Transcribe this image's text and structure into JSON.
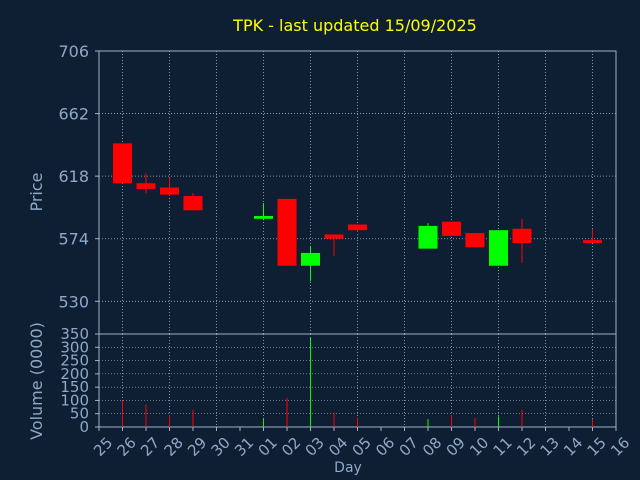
{
  "chart_data": [
    {
      "type": "candlestick",
      "title": "TPK - last updated 15/09/2025",
      "ylabel": "Price",
      "ylim": [
        507,
        706
      ],
      "yticks": [
        706,
        662,
        618,
        574,
        530
      ],
      "x_tick_labels": [
        "25",
        "26",
        "27",
        "28",
        "29",
        "30",
        "31",
        "01",
        "02",
        "03",
        "04",
        "05",
        "06",
        "07",
        "08",
        "09",
        "10",
        "11",
        "12",
        "13",
        "14",
        "15",
        "16"
      ],
      "candles": [
        {
          "day": "26",
          "open": 641,
          "high": 641,
          "low": 613,
          "close": 613
        },
        {
          "day": "27",
          "open": 613,
          "high": 620,
          "low": 606,
          "close": 609
        },
        {
          "day": "28",
          "open": 610,
          "high": 617,
          "low": 604,
          "close": 605
        },
        {
          "day": "29",
          "open": 604,
          "high": 606,
          "low": 594,
          "close": 594
        },
        {
          "day": "01",
          "open": 588,
          "high": 599,
          "low": 587,
          "close": 590
        },
        {
          "day": "02",
          "open": 602,
          "high": 602,
          "low": 555,
          "close": 555
        },
        {
          "day": "03",
          "open": 555,
          "high": 569,
          "low": 544,
          "close": 564
        },
        {
          "day": "04",
          "open": 577,
          "high": 577,
          "low": 562,
          "close": 574
        },
        {
          "day": "05",
          "open": 584,
          "high": 584,
          "low": 579,
          "close": 580
        },
        {
          "day": "08",
          "open": 567,
          "high": 585,
          "low": 567,
          "close": 583
        },
        {
          "day": "09",
          "open": 586,
          "high": 586,
          "low": 576,
          "close": 576
        },
        {
          "day": "10",
          "open": 578,
          "high": 578,
          "low": 568,
          "close": 568
        },
        {
          "day": "11",
          "open": 555,
          "high": 580,
          "low": 555,
          "close": 580
        },
        {
          "day": "12",
          "open": 581,
          "high": 588,
          "low": 557,
          "close": 571
        },
        {
          "day": "15",
          "open": 573,
          "high": 581,
          "low": 571,
          "close": 571
        }
      ],
      "colors": {
        "up": "#00ff00",
        "down": "#ff0000",
        "background": "#0f1f33",
        "axis_text": "#8fa8c8",
        "title": "#ffff00",
        "grid": "#9fb0c8"
      }
    },
    {
      "type": "bar",
      "ylabel": "Volume (0000)",
      "xlabel": "Day",
      "ylim": [
        0,
        350
      ],
      "yticks": [
        350,
        300,
        250,
        200,
        150,
        100,
        50,
        0
      ],
      "bars": [
        {
          "day": "26",
          "value": 100,
          "direction": "down"
        },
        {
          "day": "27",
          "value": 85,
          "direction": "down"
        },
        {
          "day": "28",
          "value": 45,
          "direction": "down"
        },
        {
          "day": "29",
          "value": 65,
          "direction": "down"
        },
        {
          "day": "01",
          "value": 30,
          "direction": "up"
        },
        {
          "day": "02",
          "value": 110,
          "direction": "down"
        },
        {
          "day": "03",
          "value": 335,
          "direction": "up"
        },
        {
          "day": "04",
          "value": 55,
          "direction": "down"
        },
        {
          "day": "05",
          "value": 35,
          "direction": "down"
        },
        {
          "day": "08",
          "value": 30,
          "direction": "up"
        },
        {
          "day": "09",
          "value": 45,
          "direction": "down"
        },
        {
          "day": "10",
          "value": 35,
          "direction": "down"
        },
        {
          "day": "11",
          "value": 40,
          "direction": "up"
        },
        {
          "day": "12",
          "value": 65,
          "direction": "down"
        },
        {
          "day": "15",
          "value": 30,
          "direction": "down"
        }
      ]
    }
  ]
}
